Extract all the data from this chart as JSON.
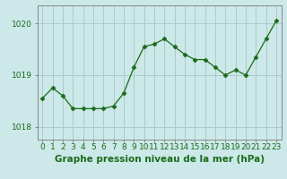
{
  "x": [
    0,
    1,
    2,
    3,
    4,
    5,
    6,
    7,
    8,
    9,
    10,
    11,
    12,
    13,
    14,
    15,
    16,
    17,
    18,
    19,
    20,
    21,
    22,
    23
  ],
  "y": [
    1018.55,
    1018.75,
    1018.6,
    1018.35,
    1018.35,
    1018.35,
    1018.35,
    1018.4,
    1018.65,
    1019.15,
    1019.55,
    1019.6,
    1019.7,
    1019.55,
    1019.4,
    1019.3,
    1019.3,
    1019.15,
    1019.0,
    1019.1,
    1019.0,
    1019.35,
    1019.7,
    1020.05
  ],
  "line_color": "#1a6b1a",
  "marker": "D",
  "marker_size": 2.5,
  "bg_color": "#cce8e8",
  "grid_color": "#aacccc",
  "xlabel": "Graphe pression niveau de la mer (hPa)",
  "xlabel_fontsize": 7.5,
  "ylim": [
    1017.75,
    1020.35
  ],
  "yticks": [
    1018,
    1019,
    1020
  ],
  "xticks": [
    0,
    1,
    2,
    3,
    4,
    5,
    6,
    7,
    8,
    9,
    10,
    11,
    12,
    13,
    14,
    15,
    16,
    17,
    18,
    19,
    20,
    21,
    22,
    23
  ],
  "tick_color": "#1a6b1a",
  "tick_fontsize": 6.5,
  "axis_color": "#888888"
}
